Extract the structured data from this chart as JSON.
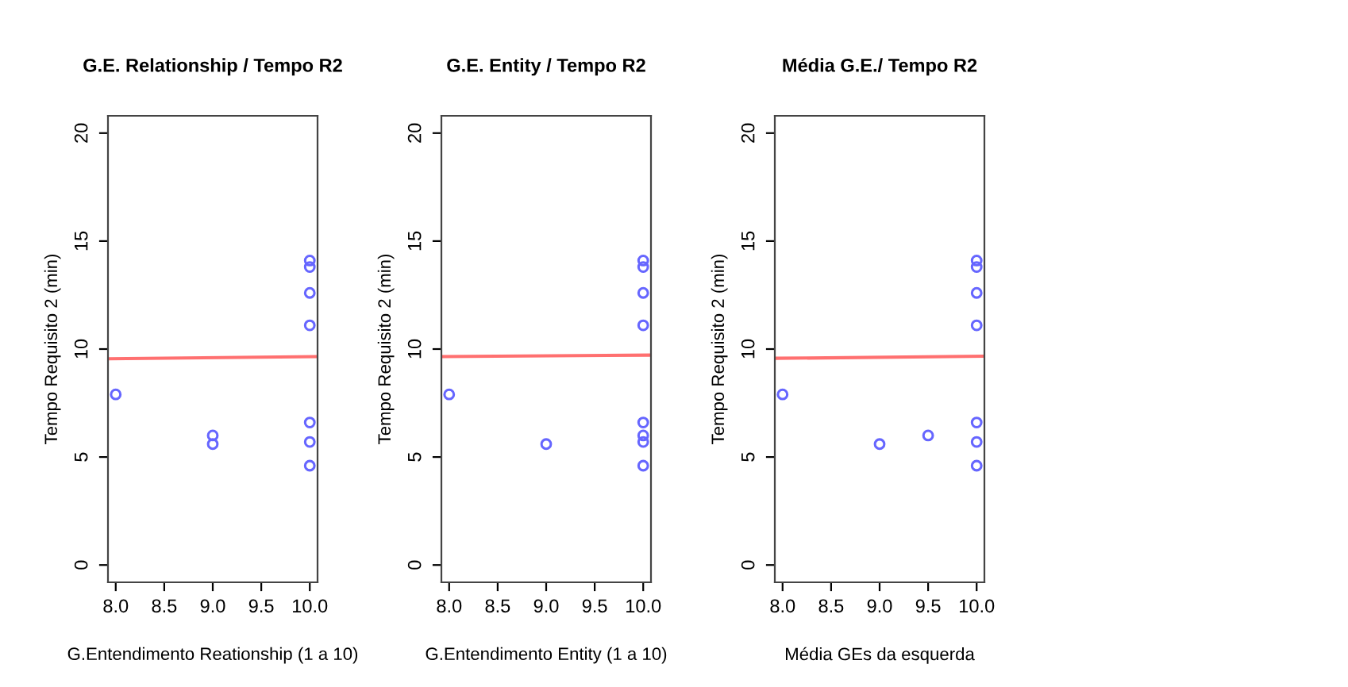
{
  "chart_data": [
    {
      "type": "scatter",
      "title": "G.E. Relationship / Tempo R2",
      "xlabel": "G.Entendimento Reationship (1 a 10)",
      "ylabel": "Tempo Requisito 2 (min)",
      "xlim": [
        7.92,
        10.08
      ],
      "ylim": [
        -0.8,
        20.8
      ],
      "xticks": [
        {
          "value": 8,
          "label": "8.0"
        },
        {
          "value": 8.5,
          "label": "8.5"
        },
        {
          "value": 9,
          "label": "9.0"
        },
        {
          "value": 9.5,
          "label": "9.5"
        },
        {
          "value": 10,
          "label": "10.0"
        }
      ],
      "yticks": [
        0,
        5,
        10,
        15,
        20
      ],
      "grid": false,
      "legend": false,
      "series": [
        {
          "marker": "circle",
          "color": "#6666ff",
          "x": [
            8,
            9,
            9,
            10,
            10,
            10,
            10,
            10,
            10,
            10
          ],
          "values": [
            7.9,
            6.0,
            5.6,
            14.1,
            13.8,
            12.6,
            11.1,
            6.6,
            5.7,
            4.6
          ]
        },
        {
          "type": "line",
          "color": "#ff7070",
          "x": [
            7.92,
            10.08
          ],
          "values": [
            9.55,
            9.65
          ]
        }
      ]
    },
    {
      "type": "scatter",
      "title": "G.E. Entity / Tempo R2",
      "xlabel": "G.Entendimento Entity (1 a 10)",
      "ylabel": "Tempo Requisito 2 (min)",
      "xlim": [
        7.92,
        10.08
      ],
      "ylim": [
        -0.8,
        20.8
      ],
      "xticks": [
        {
          "value": 8,
          "label": "8.0"
        },
        {
          "value": 8.5,
          "label": "8.5"
        },
        {
          "value": 9,
          "label": "9.0"
        },
        {
          "value": 9.5,
          "label": "9.5"
        },
        {
          "value": 10,
          "label": "10.0"
        }
      ],
      "yticks": [
        0,
        5,
        10,
        15,
        20
      ],
      "grid": false,
      "legend": false,
      "series": [
        {
          "marker": "circle",
          "color": "#6666ff",
          "x": [
            8,
            9,
            10,
            10,
            10,
            10,
            10,
            10,
            10,
            10
          ],
          "values": [
            7.9,
            5.6,
            14.1,
            13.8,
            12.6,
            11.1,
            6.6,
            6.0,
            5.7,
            4.6
          ]
        },
        {
          "type": "line",
          "color": "#ff7070",
          "x": [
            7.92,
            10.08
          ],
          "values": [
            9.65,
            9.72
          ]
        }
      ]
    },
    {
      "type": "scatter",
      "title": "Média G.E./ Tempo R2",
      "xlabel": "Média GEs da esquerda",
      "ylabel": "Tempo Requisito 2 (min)",
      "xlim": [
        7.92,
        10.08
      ],
      "ylim": [
        -0.8,
        20.8
      ],
      "xticks": [
        {
          "value": 8,
          "label": "8.0"
        },
        {
          "value": 8.5,
          "label": "8.5"
        },
        {
          "value": 9,
          "label": "9.0"
        },
        {
          "value": 9.5,
          "label": "9.5"
        },
        {
          "value": 10,
          "label": "10.0"
        }
      ],
      "yticks": [
        0,
        5,
        10,
        15,
        20
      ],
      "grid": false,
      "legend": false,
      "series": [
        {
          "marker": "circle",
          "color": "#6666ff",
          "x": [
            8,
            9,
            9.5,
            10,
            10,
            10,
            10,
            10,
            10,
            10
          ],
          "values": [
            7.9,
            5.6,
            6.0,
            14.1,
            13.8,
            12.6,
            11.1,
            6.6,
            5.7,
            4.6
          ]
        },
        {
          "type": "line",
          "color": "#ff7070",
          "x": [
            7.92,
            10.08
          ],
          "values": [
            9.57,
            9.67
          ]
        }
      ]
    }
  ]
}
